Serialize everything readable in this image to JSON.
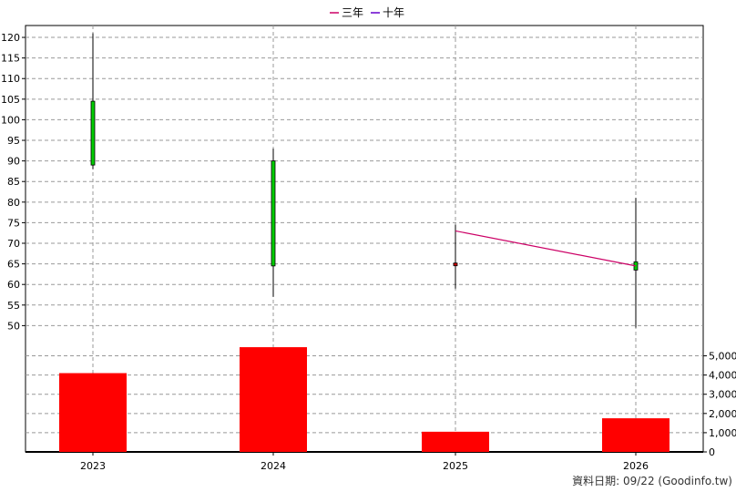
{
  "chart_data": {
    "type": "candlestick-with-volume",
    "legend": [
      {
        "label": "三年",
        "color": "#cc0066"
      },
      {
        "label": "十年",
        "color": "#6600cc"
      }
    ],
    "categories": [
      "2023",
      "2024",
      "2025",
      "2026"
    ],
    "price_axis": {
      "min": 45,
      "max": 122,
      "ticks": [
        50,
        55,
        60,
        65,
        70,
        75,
        80,
        85,
        90,
        95,
        100,
        105,
        110,
        115,
        120
      ]
    },
    "volume_axis": {
      "min": 0,
      "max": 5500,
      "ticks": [
        0,
        1000,
        2000,
        3000,
        4000,
        5000
      ],
      "tick_labels": [
        "0",
        "1,000",
        "2,000",
        "3,000",
        "4,000",
        "5,000"
      ]
    },
    "candles": [
      {
        "year": "2023",
        "open": 104.5,
        "high": 121,
        "low": 88,
        "close": 89,
        "color": "#00cc00"
      },
      {
        "year": "2024",
        "open": 90,
        "high": 93,
        "low": 57,
        "close": 64.5,
        "color": "#00cc00"
      },
      {
        "year": "2025",
        "open": 65.2,
        "high": 74.5,
        "low": 59,
        "close": 64.6,
        "color": "#cc0000"
      },
      {
        "year": "2026",
        "open": 65.5,
        "high": 81,
        "low": 49.5,
        "close": 63.5,
        "color": "#00cc00"
      }
    ],
    "three_year_line": [
      {
        "year": "2025",
        "value": 73
      },
      {
        "year": "2026",
        "value": 64.5
      }
    ],
    "volume": [
      {
        "year": "2023",
        "value": 4100
      },
      {
        "year": "2024",
        "value": 5450
      },
      {
        "year": "2025",
        "value": 1050
      },
      {
        "year": "2026",
        "value": 1750
      }
    ],
    "volume_color": "#ff0000",
    "grid": true
  },
  "footer": {
    "text": "資料日期: 09/22  (Goodinfo.tw)"
  }
}
